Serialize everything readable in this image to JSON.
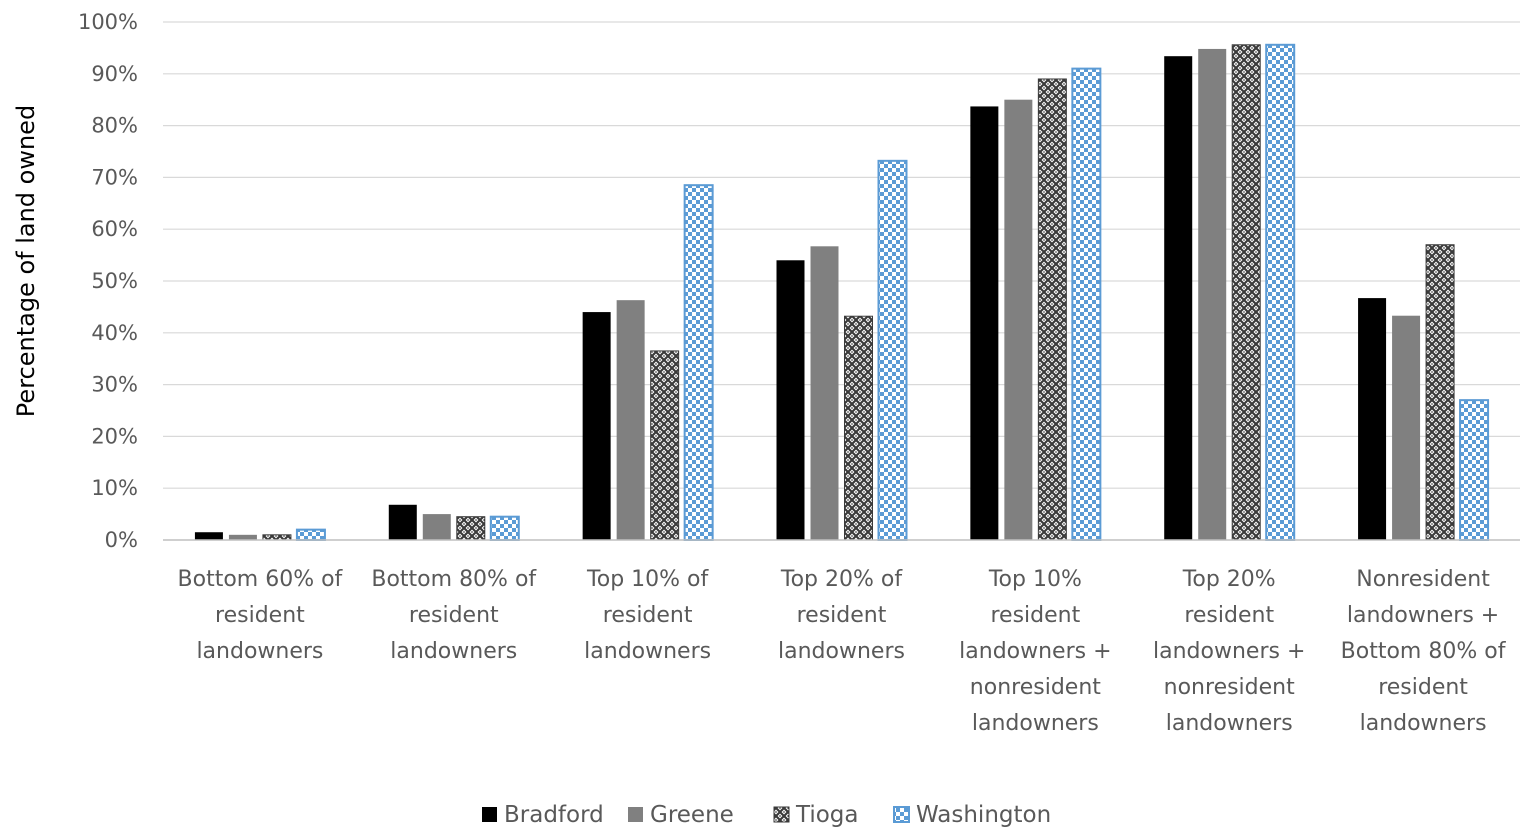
{
  "chart_data": {
    "type": "bar",
    "ylabel": "Percentage of land owned",
    "xlabel": "",
    "ylim": [
      0,
      100
    ],
    "y_ticks": [
      "0%",
      "10%",
      "20%",
      "30%",
      "40%",
      "50%",
      "60%",
      "70%",
      "80%",
      "90%",
      "100%"
    ],
    "grid": true,
    "legend_position": "bottom",
    "categories": [
      [
        "Bottom 60% of",
        "resident",
        "landowners"
      ],
      [
        "Bottom 80% of",
        "resident",
        "landowners"
      ],
      [
        "Top 10% of",
        "resident",
        "landowners"
      ],
      [
        "Top 20%  of",
        "resident",
        "landowners"
      ],
      [
        "Top 10%",
        "resident",
        "landowners +",
        "nonresident",
        "landowners"
      ],
      [
        "Top 20%",
        "resident",
        "landowners +",
        "nonresident",
        "landowners"
      ],
      [
        "Nonresident",
        "landowners +",
        "Bottom 80% of",
        "resident",
        "landowners"
      ]
    ],
    "series": [
      {
        "name": "Bradford",
        "color": "#000000",
        "pattern": "solid",
        "values": [
          1.5,
          6.8,
          44,
          54,
          83.7,
          93.4,
          46.7
        ]
      },
      {
        "name": "Greene",
        "color": "#808080",
        "pattern": "solid",
        "values": [
          1.0,
          5.0,
          46.3,
          56.7,
          85.0,
          94.8,
          43.3
        ]
      },
      {
        "name": "Tioga",
        "color": "#404040",
        "pattern": "lattice",
        "values": [
          1.0,
          4.5,
          36.5,
          43.2,
          89.0,
          95.6,
          57.0
        ]
      },
      {
        "name": "Washington",
        "color": "#5b9bd5",
        "pattern": "checker",
        "values": [
          2.0,
          4.5,
          68.5,
          73.2,
          91.0,
          95.6,
          27.0
        ]
      }
    ]
  }
}
